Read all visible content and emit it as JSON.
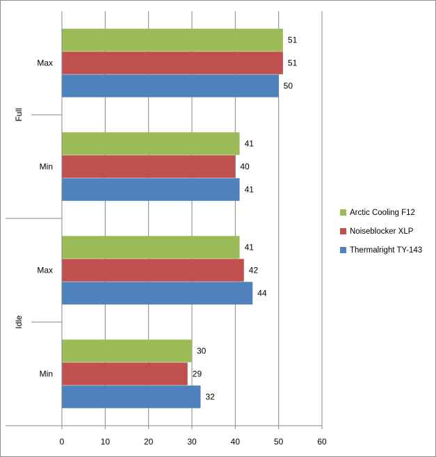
{
  "chart_data": {
    "type": "bar",
    "orientation": "horizontal",
    "groups": [
      {
        "name": "Full",
        "categories": [
          "Max",
          "Min"
        ]
      },
      {
        "name": "Idle",
        "categories": [
          "Max",
          "Min"
        ]
      }
    ],
    "series": [
      {
        "name": "Arctic Cooling F12",
        "color": "#9bbb59",
        "values": [
          51,
          41,
          41,
          30
        ]
      },
      {
        "name": "Noiseblocker XLP",
        "color": "#c0504d",
        "values": [
          51,
          40,
          42,
          29
        ]
      },
      {
        "name": "Thermalright TY-143",
        "color": "#4f81bd",
        "values": [
          50,
          41,
          44,
          32
        ]
      }
    ],
    "xlim": [
      0,
      60
    ],
    "xticks": [
      0,
      10,
      20,
      30,
      40,
      50,
      60
    ],
    "legend_position": "right",
    "grid": true,
    "title": "",
    "xlabel": "",
    "ylabel": ""
  }
}
